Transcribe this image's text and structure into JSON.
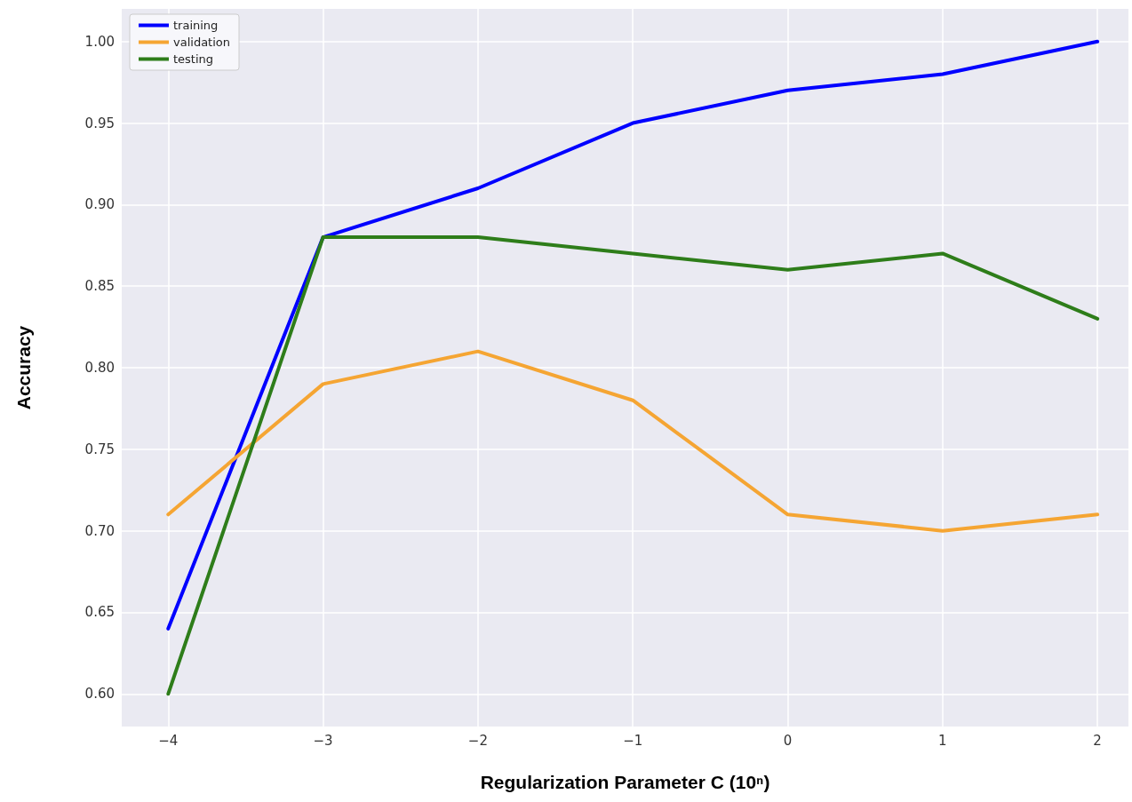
{
  "chart_data": {
    "type": "line",
    "xlabel": "Regularization Parameter C (10ⁿ)",
    "ylabel": "Accuracy",
    "x": [
      -4,
      -3,
      -2,
      -1,
      0,
      1,
      2
    ],
    "series": [
      {
        "name": "training",
        "color": "#0000ff",
        "values": [
          0.64,
          0.88,
          0.91,
          0.95,
          0.97,
          0.98,
          1.0
        ]
      },
      {
        "name": "validation",
        "color": "#f5a533",
        "values": [
          0.71,
          0.79,
          0.81,
          0.78,
          0.71,
          0.7,
          0.71
        ]
      },
      {
        "name": "testing",
        "color": "#2e7d1a",
        "values": [
          0.6,
          0.88,
          0.88,
          0.87,
          0.86,
          0.87,
          0.83
        ]
      }
    ],
    "xlim": [
      -4.3,
      2.2
    ],
    "xticks": [
      {
        "value": -4,
        "label": "−4"
      },
      {
        "value": -3,
        "label": "−3"
      },
      {
        "value": -2,
        "label": "−2"
      },
      {
        "value": -1,
        "label": "−1"
      },
      0,
      1,
      2
    ],
    "ylim": [
      0.58,
      1.02
    ],
    "yticks": [
      {
        "value": 0.6,
        "label": "0.60"
      },
      {
        "value": 0.65,
        "label": "0.65"
      },
      {
        "value": 0.7,
        "label": "0.70"
      },
      {
        "value": 0.75,
        "label": "0.75"
      },
      {
        "value": 0.8,
        "label": "0.80"
      },
      {
        "value": 0.85,
        "label": "0.85"
      },
      {
        "value": 0.9,
        "label": "0.90"
      },
      {
        "value": 0.95,
        "label": "0.95"
      },
      {
        "value": 1.0,
        "label": "1.00"
      }
    ],
    "grid": true,
    "legend": "top left",
    "marker": "none",
    "line_style": "solid"
  }
}
